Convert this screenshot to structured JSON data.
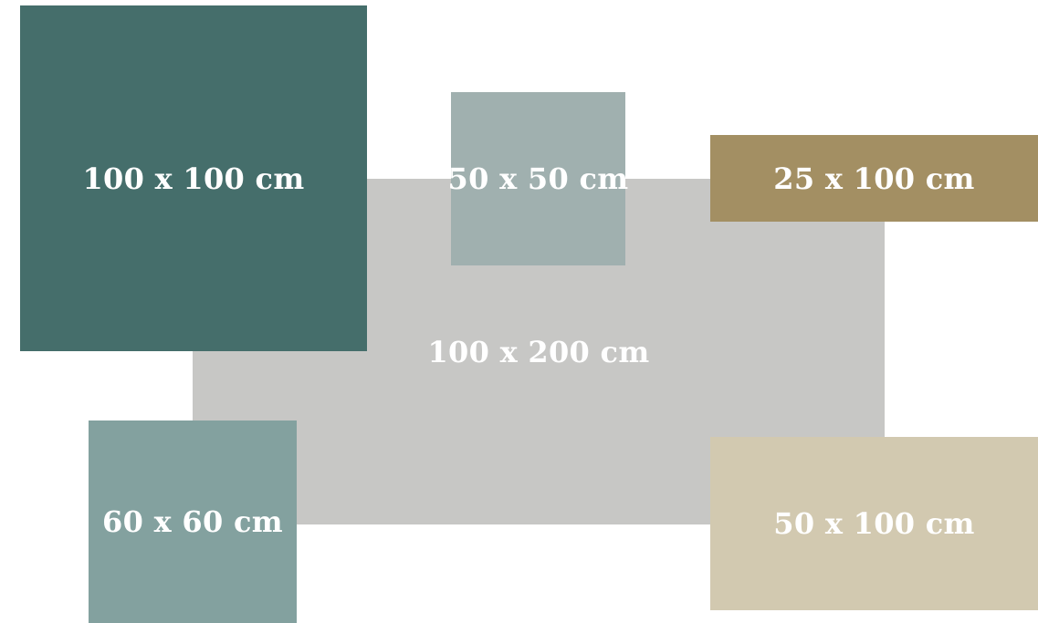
{
  "tiles": [
    {
      "id": "size-100x200",
      "label": "100 x 200 cm",
      "color": "#c7c7c5"
    },
    {
      "id": "size-100x100",
      "label": "100 x 100 cm",
      "color": "#456e6b"
    },
    {
      "id": "size-50x50",
      "label": "50 x 50 cm",
      "color": "#a0b0af"
    },
    {
      "id": "size-25x100",
      "label": "25 x 100 cm",
      "color": "#a38f63"
    },
    {
      "id": "size-60x60",
      "label": "60 x 60 cm",
      "color": "#83a19f"
    },
    {
      "id": "size-50x100",
      "label": "50 x 100 cm",
      "color": "#d2c9b0"
    }
  ]
}
